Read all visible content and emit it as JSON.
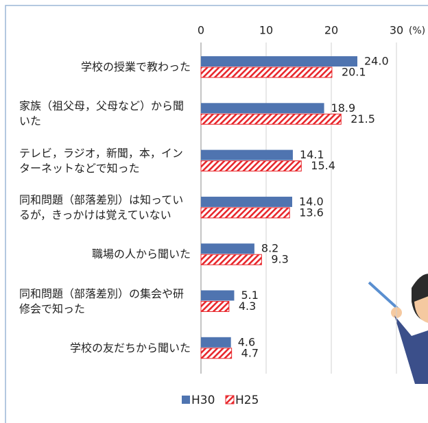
{
  "chart_data": {
    "type": "barh",
    "categories": [
      "学校の授業で教わった",
      "家族（祖父母，父母など）から聞いた",
      "テレビ，ラジオ，新聞，本，インターネットなどで知った",
      "同和問題（部落差別）は知っているが，きっかけは覚えていない",
      "職場の人から聞いた",
      "同和問題（部落差別）の集会や研修会で知った",
      "学校の友だちから聞いた"
    ],
    "series": [
      {
        "name": "H30",
        "color": "#4f74b0",
        "pattern": "solid",
        "values": [
          24,
          18.9,
          14.1,
          14,
          8.2,
          5.1,
          4.6
        ],
        "value_labels": [
          "24.0",
          "18.9",
          "14.1",
          "14.0",
          "8.2",
          "5.1",
          "4.6"
        ]
      },
      {
        "name": "H25",
        "color": "#e8262b",
        "pattern": "hatch",
        "values": [
          20.1,
          21.5,
          15.4,
          13.6,
          9.3,
          4.3,
          4.7
        ],
        "value_labels": [
          "20.1",
          "21.5",
          "15.4",
          "13.6",
          "9.3",
          "4.3",
          "4.7"
        ]
      }
    ],
    "x_label": "(%)",
    "xlim": [
      0,
      30
    ],
    "xticks": [
      0,
      10,
      20,
      30
    ],
    "grid": true,
    "legend": "bottom"
  }
}
